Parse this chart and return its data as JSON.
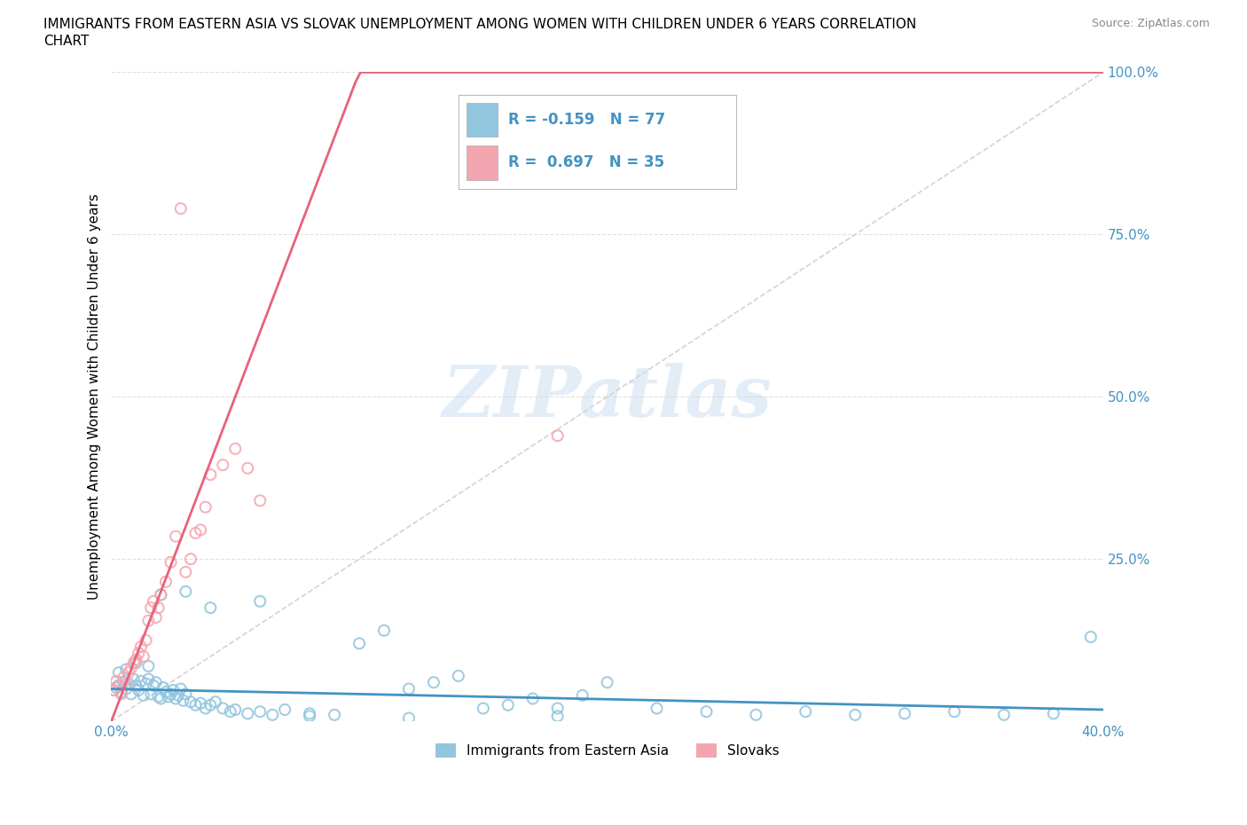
{
  "title_line1": "IMMIGRANTS FROM EASTERN ASIA VS SLOVAK UNEMPLOYMENT AMONG WOMEN WITH CHILDREN UNDER 6 YEARS CORRELATION",
  "title_line2": "CHART",
  "source": "Source: ZipAtlas.com",
  "ylabel": "Unemployment Among Women with Children Under 6 years",
  "xlim": [
    0.0,
    0.4
  ],
  "ylim": [
    0.0,
    1.0
  ],
  "color_blue": "#92C5DE",
  "color_pink": "#F4A6B0",
  "line_blue": "#4393C3",
  "line_pink": "#E8627A",
  "line_diag_color": "#CCCCCC",
  "tick_color": "#4393C3",
  "watermark_text": "ZIPatlas",
  "legend_labels": [
    "Immigrants from Eastern Asia",
    "Slovaks"
  ],
  "r_blue": -0.159,
  "n_blue": 77,
  "r_pink": 0.697,
  "n_pink": 35,
  "blue_x": [
    0.001,
    0.002,
    0.003,
    0.004,
    0.005,
    0.006,
    0.007,
    0.008,
    0.009,
    0.01,
    0.011,
    0.012,
    0.013,
    0.014,
    0.015,
    0.016,
    0.017,
    0.018,
    0.019,
    0.02,
    0.021,
    0.022,
    0.023,
    0.024,
    0.025,
    0.026,
    0.027,
    0.028,
    0.029,
    0.03,
    0.032,
    0.034,
    0.036,
    0.038,
    0.04,
    0.042,
    0.045,
    0.048,
    0.05,
    0.055,
    0.06,
    0.065,
    0.07,
    0.08,
    0.09,
    0.1,
    0.11,
    0.12,
    0.13,
    0.14,
    0.15,
    0.16,
    0.17,
    0.18,
    0.19,
    0.2,
    0.22,
    0.24,
    0.26,
    0.28,
    0.3,
    0.32,
    0.34,
    0.36,
    0.38,
    0.395,
    0.003,
    0.006,
    0.01,
    0.015,
    0.02,
    0.03,
    0.04,
    0.06,
    0.08,
    0.12,
    0.18
  ],
  "blue_y": [
    0.048,
    0.052,
    0.055,
    0.045,
    0.06,
    0.05,
    0.058,
    0.042,
    0.065,
    0.055,
    0.048,
    0.062,
    0.04,
    0.058,
    0.065,
    0.042,
    0.055,
    0.06,
    0.038,
    0.035,
    0.052,
    0.045,
    0.038,
    0.042,
    0.048,
    0.035,
    0.04,
    0.05,
    0.032,
    0.042,
    0.03,
    0.025,
    0.028,
    0.02,
    0.025,
    0.03,
    0.02,
    0.015,
    0.018,
    0.012,
    0.015,
    0.01,
    0.018,
    0.012,
    0.01,
    0.12,
    0.14,
    0.05,
    0.06,
    0.07,
    0.02,
    0.025,
    0.035,
    0.02,
    0.04,
    0.06,
    0.02,
    0.015,
    0.01,
    0.015,
    0.01,
    0.012,
    0.015,
    0.01,
    0.012,
    0.13,
    0.075,
    0.08,
    0.09,
    0.085,
    0.195,
    0.2,
    0.175,
    0.185,
    0.008,
    0.005,
    0.008
  ],
  "pink_x": [
    0.001,
    0.002,
    0.003,
    0.004,
    0.005,
    0.006,
    0.007,
    0.008,
    0.009,
    0.01,
    0.011,
    0.012,
    0.013,
    0.014,
    0.015,
    0.016,
    0.017,
    0.018,
    0.019,
    0.02,
    0.022,
    0.024,
    0.026,
    0.028,
    0.03,
    0.032,
    0.034,
    0.036,
    0.038,
    0.04,
    0.045,
    0.05,
    0.055,
    0.06,
    0.18
  ],
  "pink_y": [
    0.048,
    0.062,
    0.055,
    0.042,
    0.068,
    0.058,
    0.075,
    0.082,
    0.09,
    0.095,
    0.105,
    0.115,
    0.1,
    0.125,
    0.155,
    0.175,
    0.185,
    0.16,
    0.175,
    0.195,
    0.215,
    0.245,
    0.285,
    0.79,
    0.23,
    0.25,
    0.29,
    0.295,
    0.33,
    0.38,
    0.395,
    0.42,
    0.39,
    0.34,
    0.44
  ]
}
